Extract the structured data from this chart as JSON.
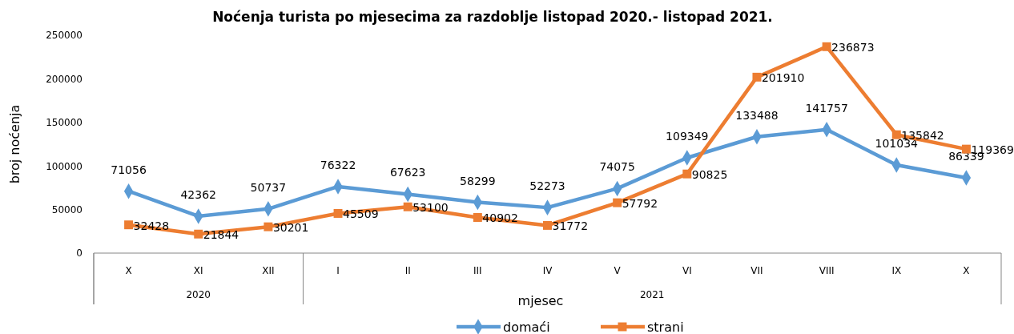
{
  "chart_data": {
    "type": "line",
    "title": "Noćenja turista po mjesecima za razdoblje listopad 2020.-  listopad 2021.",
    "xlabel": "mjesec",
    "ylabel": "broj noćenja",
    "categories": [
      "X",
      "XI",
      "XII",
      "I",
      "II",
      "III",
      "IV",
      "V",
      "VI",
      "VII",
      "VIII",
      "IX",
      "X"
    ],
    "annotations": [
      "2020",
      "2021"
    ],
    "series": [
      {
        "name": "domaći",
        "color": "#5b9bd5",
        "marker": "diamond",
        "values": [
          71056,
          42362,
          50737,
          76322,
          67623,
          58299,
          52273,
          74075,
          109349,
          133488,
          141757,
          101034,
          86339
        ]
      },
      {
        "name": "strani",
        "color": "#ed7d31",
        "marker": "square",
        "values": [
          32428,
          21844,
          30201,
          45509,
          53100,
          40902,
          31772,
          57792,
          90825,
          201910,
          236873,
          135842,
          119369
        ]
      }
    ],
    "ylim": [
      0,
      250000
    ],
    "yticks": [
      0,
      50000,
      100000,
      150000,
      200000,
      250000
    ],
    "data_labels": true,
    "legend": "bottom",
    "grid": false
  }
}
